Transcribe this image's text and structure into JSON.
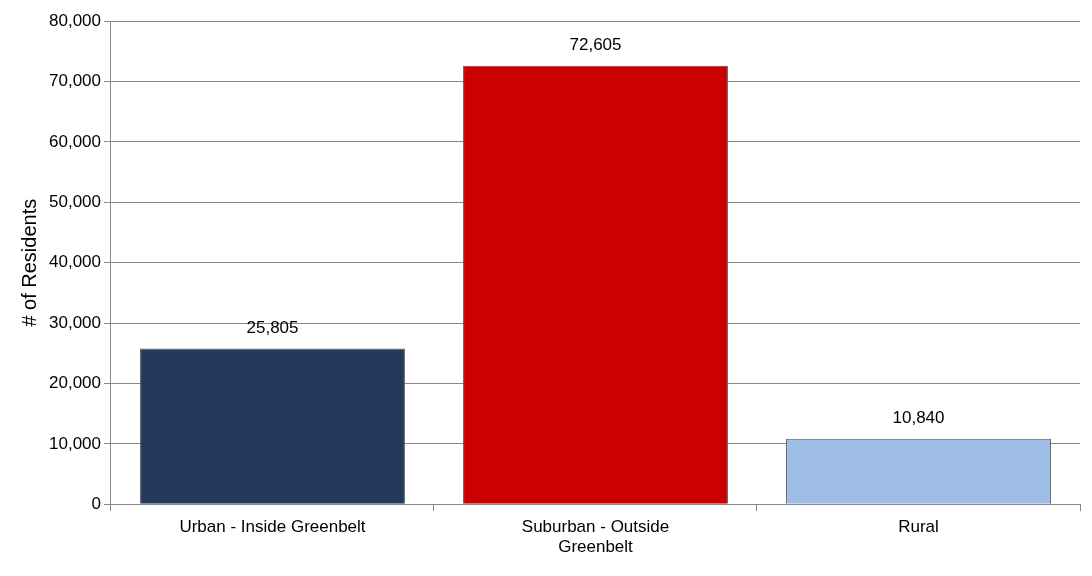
{
  "chart_data": {
    "type": "bar",
    "ylabel": "# of Residents",
    "categories": [
      "Urban - Inside Greenbelt",
      "Suburban - Outside Greenbelt",
      "Rural"
    ],
    "values": [
      25805,
      72605,
      10840
    ],
    "value_labels": [
      "25,805",
      "72,605",
      "10,840"
    ],
    "colors": [
      "#243a5a",
      "#cc0000",
      "#9dbde5"
    ],
    "ylim": [
      0,
      80000
    ],
    "yticks": [
      0,
      {
        "value": 10000,
        "label": "10,000"
      },
      {
        "value": 20000,
        "label": "20,000"
      },
      {
        "value": 30000,
        "label": "30,000"
      },
      {
        "value": 40000,
        "label": "40,000"
      },
      {
        "value": 50000,
        "label": "50,000"
      },
      {
        "value": 60000,
        "label": "60,000"
      },
      {
        "value": 70000,
        "label": "70,000"
      },
      {
        "value": 80000,
        "label": "80,000"
      }
    ],
    "grid": "y",
    "legend": false
  }
}
